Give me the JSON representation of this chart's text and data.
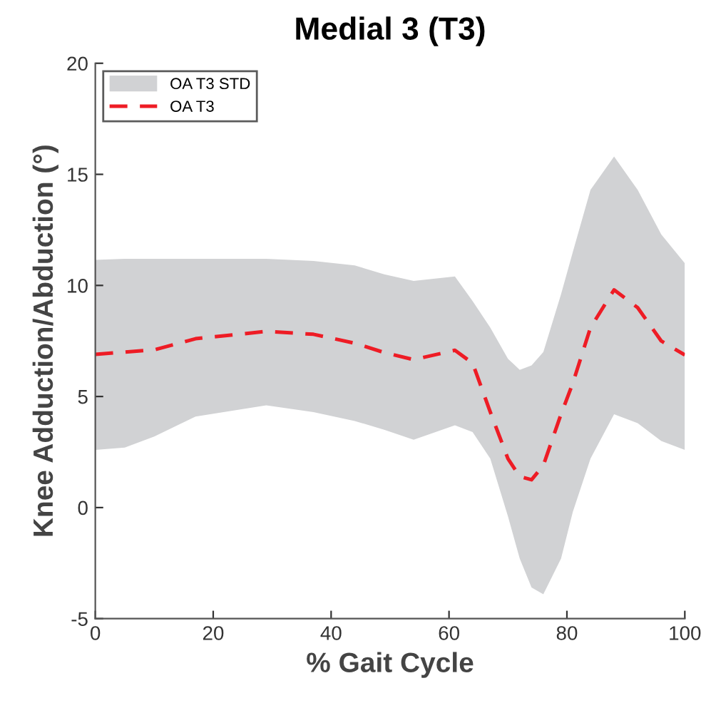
{
  "chart_data": {
    "type": "line",
    "title": "Medial 3 (T3)",
    "xlabel": "% Gait Cycle",
    "ylabel": "Knee Adduction/Abduction (°)",
    "xlim": [
      0,
      100
    ],
    "xticks": [
      0,
      20,
      40,
      60,
      80,
      100
    ],
    "ylim": [
      -5,
      20
    ],
    "yticks": [
      -5,
      0,
      5,
      10,
      15,
      20
    ],
    "grid": false,
    "legend": "top left",
    "annotations": [
      "OA T3 STD"
    ],
    "series": [
      {
        "name": "OA T3",
        "color": "#ee1c25",
        "line_style": "dashed",
        "x": [
          0,
          5,
          10,
          17,
          29,
          37,
          44,
          49,
          54,
          61,
          64,
          67,
          70,
          72,
          74,
          76,
          79,
          81,
          84,
          88,
          92,
          96,
          100
        ],
        "values": [
          6.9,
          7.0,
          7.1,
          7.6,
          7.93,
          7.8,
          7.4,
          6.98,
          6.66,
          7.08,
          6.5,
          4.3,
          2.2,
          1.4,
          1.25,
          1.9,
          4.2,
          5.6,
          8.1,
          9.8,
          9.0,
          7.5,
          6.87
        ],
        "lower": [
          2.6,
          2.7,
          3.2,
          4.1,
          4.6,
          4.3,
          3.9,
          3.5,
          3.05,
          3.7,
          3.4,
          2.2,
          -0.4,
          -2.3,
          -3.6,
          -3.9,
          -2.3,
          -0.2,
          2.2,
          4.2,
          3.8,
          3.0,
          2.6
        ],
        "upper": [
          11.15,
          11.2,
          11.2,
          11.2,
          11.2,
          11.1,
          10.9,
          10.5,
          10.2,
          10.4,
          9.3,
          8.1,
          6.7,
          6.2,
          6.4,
          7.0,
          9.6,
          11.5,
          14.3,
          15.8,
          14.3,
          12.3,
          11.0
        ]
      }
    ]
  }
}
